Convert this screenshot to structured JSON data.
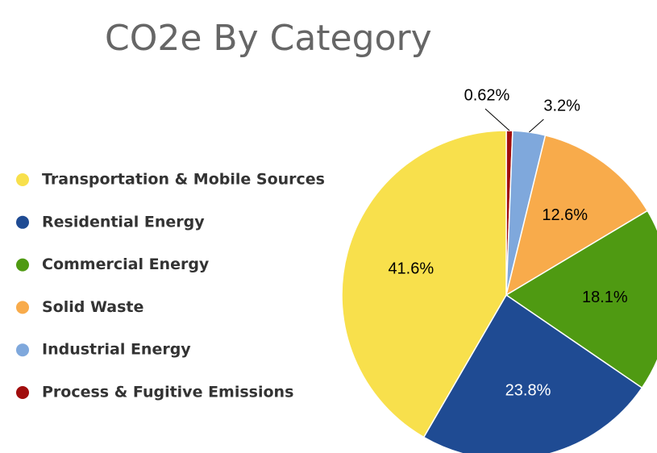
{
  "chart_data": {
    "type": "pie",
    "title": "CO2e By Category",
    "categories": [
      "Transportation & Mobile Sources",
      "Residential Energy",
      "Commercial Energy",
      "Solid Waste",
      "Industrial Energy",
      "Process & Fugitive Emissions"
    ],
    "values": [
      41.6,
      23.8,
      18.1,
      12.6,
      3.2,
      0.62
    ],
    "value_labels": [
      "41.6%",
      "23.8%",
      "18.1%",
      "12.6%",
      "3.2%",
      "0.62%"
    ],
    "colors": [
      "#f8e04c",
      "#1f4b93",
      "#4f9a12",
      "#f8ab4b",
      "#7fa8dc",
      "#a10d0d"
    ],
    "legend": "left"
  }
}
